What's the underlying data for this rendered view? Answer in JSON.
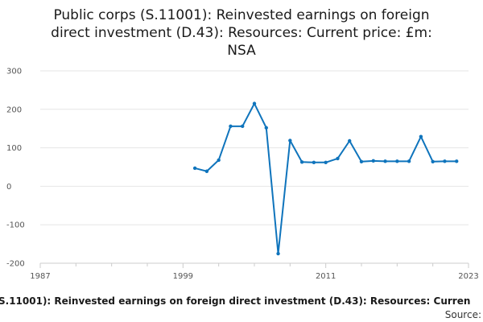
{
  "chart_data": {
    "type": "line",
    "title_lines": [
      "Public corps (S.11001): Reinvested earnings on foreign",
      "direct investment (D.43): Resources: Current price: £m:",
      "NSA"
    ],
    "series": [
      {
        "name": "Public corps (S.11001): Reinvested earnings on foreign direct investment (D.43): Resources: Current price: £m: NSA",
        "color": "#0f74bc",
        "points": [
          {
            "x": 2000,
            "y": 47
          },
          {
            "x": 2001,
            "y": 39
          },
          {
            "x": 2002,
            "y": 68
          },
          {
            "x": 2003,
            "y": 156
          },
          {
            "x": 2004,
            "y": 156
          },
          {
            "x": 2005,
            "y": 215
          },
          {
            "x": 2006,
            "y": 152
          },
          {
            "x": 2007,
            "y": -175
          },
          {
            "x": 2008,
            "y": 119
          },
          {
            "x": 2009,
            "y": 63
          },
          {
            "x": 2010,
            "y": 62
          },
          {
            "x": 2011,
            "y": 62
          },
          {
            "x": 2012,
            "y": 72
          },
          {
            "x": 2013,
            "y": 118
          },
          {
            "x": 2014,
            "y": 64
          },
          {
            "x": 2015,
            "y": 66
          },
          {
            "x": 2016,
            "y": 65
          },
          {
            "x": 2017,
            "y": 65
          },
          {
            "x": 2018,
            "y": 65
          },
          {
            "x": 2019,
            "y": 129
          },
          {
            "x": 2020,
            "y": 64
          },
          {
            "x": 2021,
            "y": 65
          },
          {
            "x": 2022,
            "y": 65
          }
        ]
      }
    ],
    "xlim": [
      1987,
      2023
    ],
    "ylim": [
      -200,
      300
    ],
    "x_ticks": [
      1987,
      1999,
      2011,
      2023
    ],
    "x_tick_labels": [
      "1987",
      "1999",
      "2011",
      "2023"
    ],
    "y_ticks": [
      300,
      200,
      100,
      0,
      -100,
      -200
    ],
    "y_tick_labels": [
      "300",
      "200",
      "100",
      "0",
      "-100",
      "-200"
    ],
    "grid": "horizontal",
    "legend_placement": "bottom",
    "legend_text": "S.11001): Reinvested earnings on foreign direct investment (D.43): Resources: Curren",
    "source_label": "Source:"
  }
}
